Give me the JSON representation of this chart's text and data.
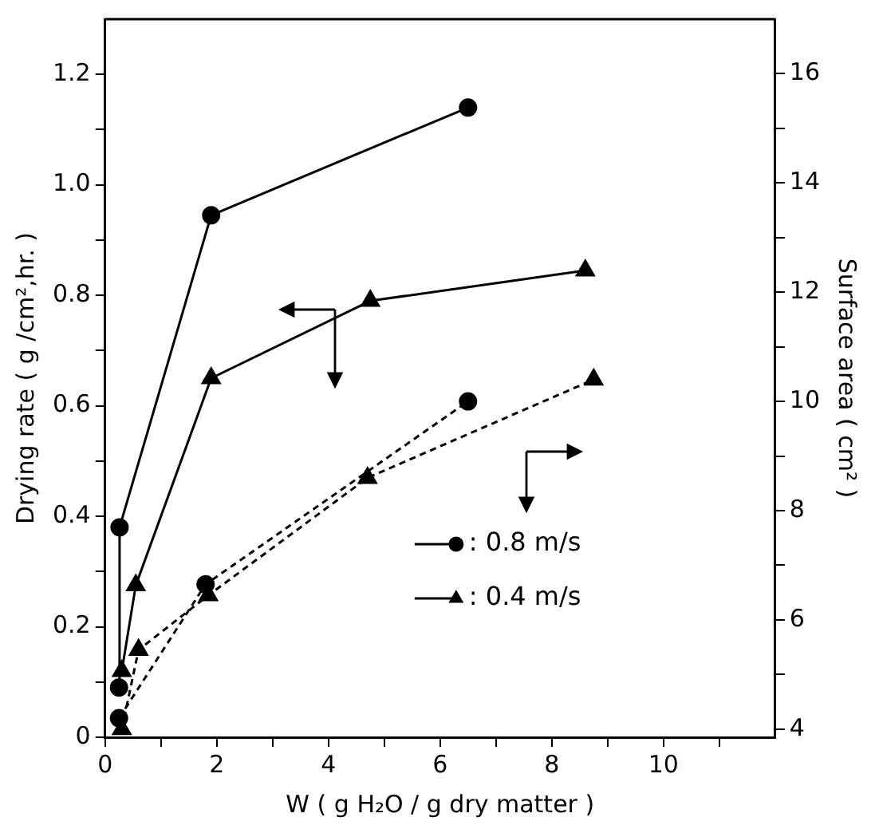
{
  "chart_data": {
    "type": "line",
    "xlabel": "W ( g H₂O / g dry matter )",
    "ylabel": "Drying rate ( g /cm²,hr. )",
    "y2label": "Surface area ( cm² )",
    "xlim": [
      0,
      12
    ],
    "xticks": [
      0,
      {
        "value": 1,
        "label": null
      },
      2,
      {
        "value": 3,
        "label": null
      },
      4,
      {
        "value": 5,
        "label": null
      },
      6,
      {
        "value": 7,
        "label": null
      },
      8,
      {
        "value": 9,
        "label": null
      },
      10,
      {
        "value": 11,
        "label": null
      }
    ],
    "ylim": [
      0,
      1.3
    ],
    "yticks": [
      0,
      {
        "value": 0.1,
        "label": null
      },
      0.2,
      {
        "value": 0.3,
        "label": null
      },
      0.4,
      {
        "value": 0.5,
        "label": null
      },
      0.6,
      {
        "value": 0.7,
        "label": null
      },
      0.8,
      {
        "value": 0.9,
        "label": null
      },
      {
        "value": 1,
        "label": "1.0"
      },
      {
        "value": 1.1,
        "label": null
      },
      1.2
    ],
    "y2lim": [
      3.85,
      17
    ],
    "y2ticks": [
      4,
      {
        "value": 5,
        "label": null
      },
      6,
      {
        "value": 7,
        "label": null
      },
      8,
      {
        "value": 9,
        "label": null
      },
      10,
      {
        "value": 11,
        "label": null
      },
      12,
      {
        "value": 13,
        "label": null
      },
      14,
      {
        "value": 15,
        "label": null
      },
      16
    ],
    "legend": "bottom right",
    "grid": false,
    "series": [
      {
        "name": ": 0.8 m/s",
        "color": "#000000",
        "marker": "circle",
        "line_style": "solid",
        "x": [
          0.25,
          0.26,
          1.9,
          6.5
        ],
        "values": [
          0.09,
          0.38,
          0.945,
          1.14
        ]
      },
      {
        "name": ": 0.4 m/s",
        "color": "#000000",
        "marker": "triangle",
        "line_style": "solid",
        "x": [
          0.3,
          0.55,
          1.9,
          4.75,
          8.6
        ],
        "values": [
          0.12,
          0.275,
          0.65,
          0.79,
          0.845
        ]
      },
      {
        "color": "#000000",
        "marker": "circle",
        "line_style": "dashed",
        "axis": "y2",
        "x": [
          0.25,
          1.8,
          6.5
        ],
        "values": [
          4.2,
          6.65,
          10.0
        ]
      },
      {
        "color": "#000000",
        "marker": "triangle",
        "line_style": "dashed",
        "axis": "y2",
        "x": [
          0.3,
          0.6,
          1.85,
          4.7,
          8.75
        ],
        "values": [
          4.0,
          5.45,
          6.45,
          8.6,
          10.4
        ]
      }
    ]
  }
}
